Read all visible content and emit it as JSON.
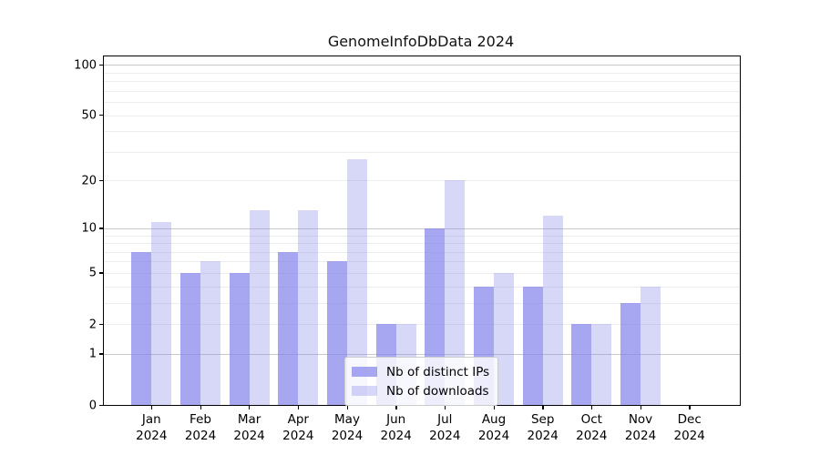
{
  "chart_data": {
    "type": "bar",
    "title": "GenomeInfoDbData 2024",
    "x": {
      "months": [
        "Jan",
        "Feb",
        "Mar",
        "Apr",
        "May",
        "Jun",
        "Jul",
        "Aug",
        "Sep",
        "Oct",
        "Nov",
        "Dec"
      ],
      "year": "2024"
    },
    "series": [
      {
        "name": "Nb of distinct IPs",
        "values": [
          7,
          5,
          5,
          7,
          6,
          2,
          10,
          4,
          4,
          2,
          3,
          0
        ],
        "base_color": "#8585eb",
        "alpha": 0.72
      },
      {
        "name": "Nb of downloads",
        "values": [
          11,
          6,
          13,
          13,
          27,
          2,
          20,
          5,
          12,
          2,
          4,
          0
        ],
        "base_color": "#8585eb",
        "alpha": 0.33
      }
    ],
    "y_axis": {
      "ticks": [
        0,
        1,
        2,
        5,
        10,
        20,
        50,
        100
      ],
      "scale": "log10(1+x)",
      "ylim": [
        0,
        112
      ]
    },
    "grid": {
      "major_values": [
        1,
        10,
        100
      ],
      "minor_values": [
        2,
        3,
        4,
        5,
        6,
        7,
        8,
        9,
        20,
        30,
        40,
        50,
        60,
        70,
        80,
        90
      ],
      "major_color": "#c9c9c9",
      "minor_color": "#ededed"
    },
    "legend_position": "inside lower center",
    "bar_blend_colors": {
      "distinct_ips": "#a8a8f1",
      "downloads": "#d7d7f8"
    }
  }
}
